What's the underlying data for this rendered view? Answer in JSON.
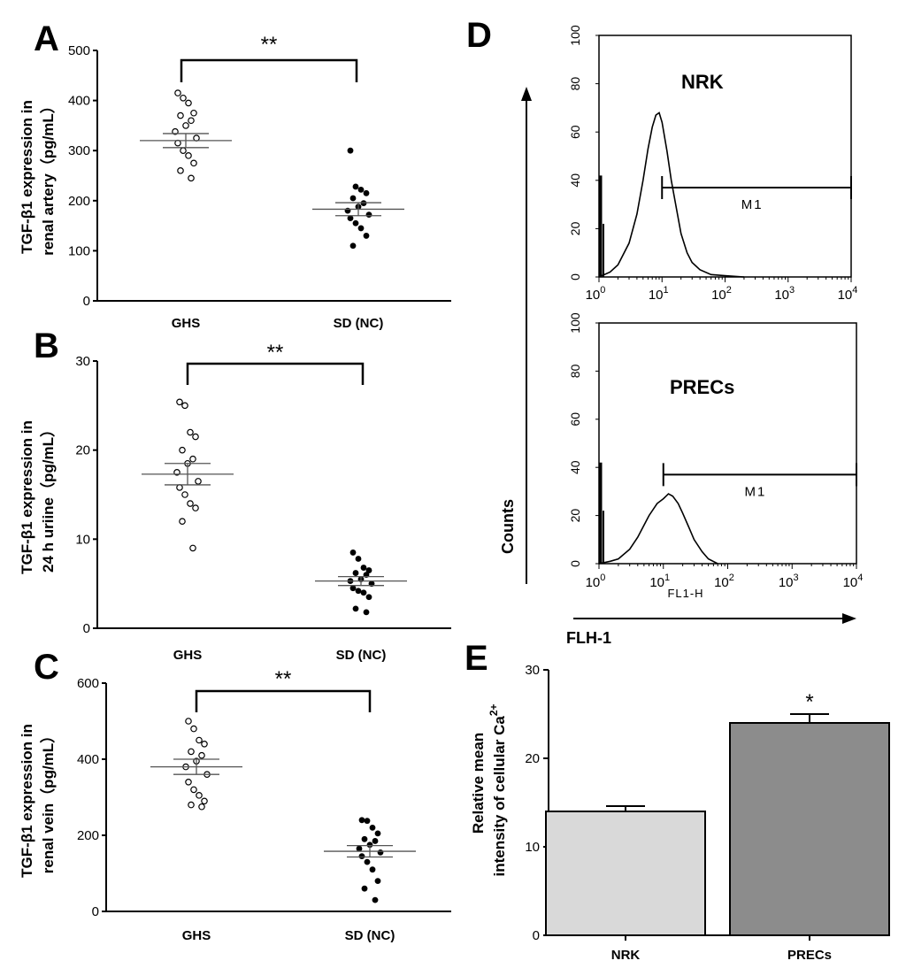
{
  "chart_data": [
    {
      "panel": "A",
      "type": "scatter",
      "ylabel_line1": "TGF-β1 expression in",
      "ylabel_line2": "renal artery（pg/mL）",
      "ylim": [
        0,
        500
      ],
      "yticks": [
        "0",
        "100",
        "200",
        "300",
        "400",
        "500"
      ],
      "categories": [
        "GHS",
        "SD (NC)"
      ],
      "significance": "**",
      "series": [
        {
          "name": "GHS",
          "marker": "open",
          "mean": 320,
          "sem": 14,
          "values": [
            415,
            405,
            395,
            375,
            370,
            360,
            350,
            338,
            325,
            315,
            300,
            290,
            275,
            260,
            245
          ]
        },
        {
          "name": "SD (NC)",
          "marker": "filled",
          "mean": 183,
          "sem": 13,
          "values": [
            300,
            228,
            222,
            215,
            205,
            195,
            188,
            180,
            172,
            165,
            155,
            145,
            130,
            110
          ]
        }
      ]
    },
    {
      "panel": "B",
      "type": "scatter",
      "ylabel_line1": "TGF-β1 expression in",
      "ylabel_line2": "24 h uriine（pg/mL）",
      "ylim": [
        0,
        30
      ],
      "yticks": [
        "0",
        "10",
        "20",
        "30"
      ],
      "categories": [
        "GHS",
        "SD (NC)"
      ],
      "significance": "**",
      "series": [
        {
          "name": "GHS",
          "marker": "open",
          "mean": 17.3,
          "sem": 1.2,
          "values": [
            25.4,
            25.0,
            22.0,
            21.5,
            20.0,
            19.0,
            18.5,
            17.5,
            16.5,
            15.8,
            15.0,
            14.0,
            13.5,
            12.0,
            9.0
          ]
        },
        {
          "name": "SD (NC)",
          "marker": "filled",
          "mean": 5.3,
          "sem": 0.5,
          "values": [
            8.5,
            7.8,
            6.8,
            6.5,
            6.2,
            6.0,
            5.5,
            5.3,
            5.0,
            4.5,
            4.2,
            4.0,
            3.5,
            2.2,
            1.8
          ]
        }
      ]
    },
    {
      "panel": "C",
      "type": "scatter",
      "ylabel_line1": "TGF-β1 expression in",
      "ylabel_line2": "renal vein（pg/mL）",
      "ylim": [
        0,
        600
      ],
      "yticks": [
        "0",
        "200",
        "400",
        "600"
      ],
      "categories": [
        "GHS",
        "SD (NC)"
      ],
      "significance": "**",
      "series": [
        {
          "name": "GHS",
          "marker": "open",
          "mean": 380,
          "sem": 20,
          "values": [
            500,
            480,
            450,
            440,
            420,
            410,
            395,
            380,
            360,
            340,
            320,
            305,
            290,
            280,
            275
          ]
        },
        {
          "name": "SD (NC)",
          "marker": "filled",
          "mean": 158,
          "sem": 15,
          "values": [
            240,
            238,
            220,
            205,
            190,
            185,
            175,
            165,
            155,
            145,
            130,
            110,
            80,
            60,
            30
          ]
        }
      ]
    },
    {
      "panel": "D",
      "type": "line",
      "ylabel": "Counts",
      "xlabel": "FLH-1",
      "xaxis_name": "FL1-H",
      "xscale": "log",
      "xlim": [
        1,
        10000
      ],
      "ylim": [
        0,
        100
      ],
      "yticks": [
        "0",
        "20",
        "40",
        "60",
        "80",
        "100"
      ],
      "gate_label": "M1",
      "histograms": [
        {
          "name": "NRK",
          "gate_start": 10,
          "gate_y": 37,
          "x": [
            1.0,
            1.5,
            2,
            3,
            4,
            5,
            6,
            7,
            8,
            9,
            10,
            12,
            14,
            17,
            20,
            25,
            30,
            40,
            60,
            100,
            200
          ],
          "y": [
            0,
            2,
            5,
            14,
            26,
            40,
            53,
            62,
            67,
            68,
            64,
            52,
            40,
            28,
            18,
            10,
            6,
            3,
            1,
            0.5,
            0
          ]
        },
        {
          "name": "PRECs",
          "gate_start": 10,
          "gate_y": 37,
          "x": [
            1.0,
            1.5,
            2,
            3,
            4,
            5,
            6,
            8,
            10,
            12,
            14,
            17,
            20,
            25,
            30,
            40,
            50,
            70
          ],
          "y": [
            0,
            1,
            2,
            6,
            11,
            16,
            20,
            25,
            27,
            29,
            28,
            25,
            21,
            15,
            10,
            5,
            2,
            0
          ]
        }
      ]
    },
    {
      "panel": "E",
      "type": "bar",
      "ylabel_line1": "Relative mean",
      "ylabel_line2": "intensity of cellular Ca",
      "ylabel_sup": "2+",
      "ylim": [
        0,
        30
      ],
      "yticks": [
        "0",
        "10",
        "20",
        "30"
      ],
      "categories": [
        "NRK",
        "PRECs"
      ],
      "values": [
        14,
        24
      ],
      "errors": [
        0.6,
        1.0
      ],
      "colors": [
        "#d9d9d9",
        "#8c8c8c"
      ],
      "significance": [
        "",
        "*"
      ]
    }
  ],
  "panel_letters": {
    "a": "A",
    "b": "B",
    "c": "C",
    "d": "D",
    "e": "E"
  },
  "log_ticks": [
    "10",
    "10",
    "10",
    "10",
    "10"
  ],
  "log_exps": [
    "0",
    "1",
    "2",
    "3",
    "4"
  ]
}
